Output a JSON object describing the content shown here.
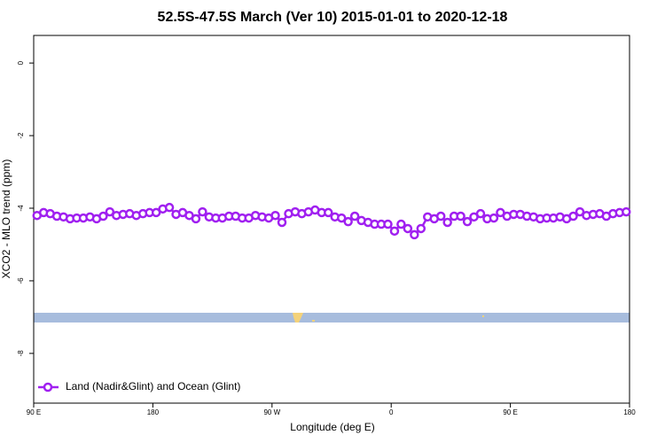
{
  "chart_data": {
    "type": "line",
    "title": "52.5S-47.5S March (Ver 10)   2015-01-01 to 2020-12-18",
    "xlabel": "Longitude (deg E)",
    "ylabel": "XCO2 - MLO trend (ppm)",
    "xlim": [
      90,
      540
    ],
    "xticks": [
      {
        "value": 90,
        "label": "90 E"
      },
      {
        "value": 180,
        "label": "180"
      },
      {
        "value": 270,
        "label": "90 W"
      },
      {
        "value": 360,
        "label": "0"
      },
      {
        "value": 450,
        "label": "90 E"
      },
      {
        "value": 540,
        "label": "180"
      }
    ],
    "ylim": [
      -9.37,
      0.76
    ],
    "yticks": [
      0,
      -2,
      -4,
      -6,
      -8
    ],
    "legend": "bottom-left",
    "x": [
      92.5,
      97.5,
      102.5,
      107.5,
      112.5,
      117.5,
      122.5,
      127.5,
      132.5,
      137.5,
      142.5,
      147.5,
      152.5,
      157.5,
      162.5,
      167.5,
      172.5,
      177.5,
      182.5,
      187.5,
      192.5,
      197.5,
      202.5,
      207.5,
      212.5,
      217.5,
      222.5,
      227.5,
      232.5,
      237.5,
      242.5,
      247.5,
      252.5,
      257.5,
      262.5,
      267.5,
      272.5,
      277.5,
      282.5,
      287.5,
      292.5,
      297.5,
      302.5,
      307.5,
      312.5,
      317.5,
      322.5,
      327.5,
      332.5,
      337.5,
      342.5,
      347.5,
      352.5,
      357.5,
      362.5,
      367.5,
      372.5,
      377.5,
      382.5,
      387.5,
      392.5,
      397.5,
      402.5,
      407.5,
      412.5,
      417.5,
      422.5,
      427.5,
      432.5,
      437.5,
      442.5,
      447.5,
      452.5,
      457.5,
      462.5,
      467.5,
      472.5,
      477.5,
      482.5,
      487.5,
      492.5,
      497.5,
      502.5,
      507.5,
      512.5,
      517.5,
      522.5,
      527.5,
      532.5,
      537.5
    ],
    "series": [
      {
        "name": "Land (Nadir&Glint) and Ocean (Glint)",
        "color": "#a020f0",
        "values": [
          -4.2,
          -4.12,
          -4.15,
          -4.22,
          -4.24,
          -4.29,
          -4.27,
          -4.27,
          -4.24,
          -4.29,
          -4.22,
          -4.1,
          -4.2,
          -4.17,
          -4.15,
          -4.2,
          -4.15,
          -4.12,
          -4.12,
          -4.02,
          -3.98,
          -4.17,
          -4.12,
          -4.2,
          -4.29,
          -4.1,
          -4.24,
          -4.27,
          -4.27,
          -4.22,
          -4.22,
          -4.27,
          -4.27,
          -4.2,
          -4.24,
          -4.27,
          -4.2,
          -4.39,
          -4.15,
          -4.1,
          -4.15,
          -4.1,
          -4.05,
          -4.12,
          -4.12,
          -4.24,
          -4.27,
          -4.37,
          -4.22,
          -4.34,
          -4.39,
          -4.44,
          -4.44,
          -4.44,
          -4.63,
          -4.44,
          -4.56,
          -4.73,
          -4.56,
          -4.24,
          -4.29,
          -4.22,
          -4.39,
          -4.22,
          -4.22,
          -4.37,
          -4.24,
          -4.15,
          -4.29,
          -4.27,
          -4.12,
          -4.22,
          -4.17,
          -4.17,
          -4.22,
          -4.24,
          -4.29,
          -4.27,
          -4.27,
          -4.24,
          -4.29,
          -4.22,
          -4.1,
          -4.2,
          -4.17,
          -4.15,
          -4.22,
          -4.15,
          -4.12,
          -4.1
        ]
      }
    ]
  }
}
